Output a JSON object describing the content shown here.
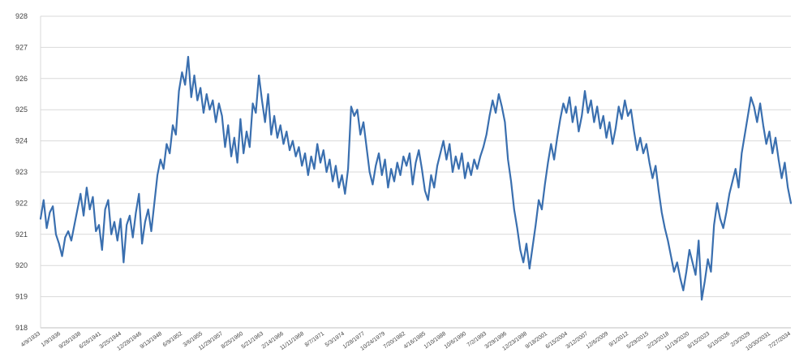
{
  "chart_data": {
    "type": "line",
    "title": "",
    "xlabel": "",
    "ylabel": "",
    "ylim": [
      918,
      928
    ],
    "yticks": [
      "918",
      "919",
      "920",
      "921",
      "922",
      "923",
      "924",
      "925",
      "926",
      "927",
      "928"
    ],
    "xticks": [
      "4/9/1933",
      "1/9/1936",
      "9/26/1938",
      "6/26/1941",
      "3/25/1944",
      "12/28/1946",
      "9/13/1948",
      "6/9/1952",
      "3/6/1955",
      "11/29/1957",
      "8/25/1960",
      "5/21/1963",
      "2/14/1966",
      "11/11/1968",
      "8/7/1971",
      "5/3/1974",
      "1/28/1977",
      "10/24/1979",
      "7/20/1982",
      "4/16/1985",
      "1/10/1988",
      "10/6/1990",
      "7/2/1993",
      "3/29/1996",
      "12/23/1998",
      "9/18/2001",
      "6/15/2004",
      "3/12/2007",
      "12/6/2009",
      "9/1/2012",
      "5/29/2015",
      "2/23/2018",
      "11/19/2020",
      "8/15/2023",
      "5/10/2026",
      "2/3/2029",
      "10/30/2031",
      "7/27/2034"
    ],
    "grid": true,
    "legend": "none",
    "line_color": "#3a6faf",
    "series": [
      {
        "name": "",
        "values": [
          921.5,
          922.1,
          921.2,
          921.7,
          921.9,
          921.0,
          920.7,
          920.3,
          920.9,
          921.1,
          920.8,
          921.3,
          921.8,
          922.3,
          921.6,
          922.5,
          921.8,
          922.2,
          921.1,
          921.3,
          920.5,
          921.8,
          922.1,
          921.0,
          921.4,
          920.8,
          921.5,
          920.1,
          921.3,
          921.6,
          920.9,
          921.7,
          922.3,
          920.7,
          921.4,
          921.8,
          921.1,
          922.0,
          922.9,
          923.4,
          923.1,
          923.9,
          923.6,
          924.5,
          924.2,
          925.6,
          926.2,
          925.8,
          926.7,
          925.4,
          926.1,
          925.3,
          925.7,
          924.9,
          925.5,
          925.0,
          925.3,
          924.6,
          925.2,
          924.8,
          923.8,
          924.5,
          923.5,
          924.1,
          923.3,
          924.7,
          923.6,
          924.3,
          923.8,
          925.2,
          924.9,
          926.1,
          925.3,
          924.6,
          925.5,
          924.2,
          924.8,
          924.1,
          924.5,
          923.9,
          924.3,
          923.7,
          924.0,
          923.5,
          923.8,
          923.2,
          923.6,
          922.9,
          923.5,
          923.1,
          923.9,
          923.3,
          923.7,
          923.0,
          923.4,
          922.7,
          923.2,
          922.5,
          922.9,
          922.3,
          923.1,
          925.1,
          924.8,
          925.0,
          924.2,
          924.6,
          923.8,
          923.0,
          922.6,
          923.2,
          923.6,
          922.9,
          923.4,
          922.5,
          923.1,
          922.7,
          923.3,
          922.9,
          923.5,
          923.2,
          923.6,
          922.6,
          923.3,
          923.7,
          923.1,
          922.4,
          922.1,
          922.9,
          922.5,
          923.2,
          923.6,
          924.0,
          923.4,
          923.9,
          923.0,
          923.5,
          923.1,
          923.6,
          922.8,
          923.3,
          922.9,
          923.4,
          923.1,
          923.5,
          923.8,
          924.2,
          924.8,
          925.3,
          924.9,
          925.5,
          925.1,
          924.6,
          923.4,
          922.7,
          921.8,
          921.2,
          920.5,
          920.1,
          920.7,
          919.9,
          920.6,
          921.3,
          922.1,
          921.8,
          922.6,
          923.3,
          923.9,
          923.4,
          924.1,
          924.7,
          925.2,
          924.9,
          925.4,
          924.6,
          925.1,
          924.3,
          924.8,
          925.6,
          924.9,
          925.3,
          924.6,
          925.1,
          924.4,
          924.8,
          924.1,
          924.6,
          923.9,
          924.4,
          925.1,
          924.7,
          925.3,
          924.8,
          925.0,
          924.3,
          923.7,
          924.1,
          923.6,
          923.9,
          923.3,
          922.8,
          923.2,
          922.4,
          921.7,
          921.2,
          920.8,
          920.3,
          919.8,
          920.1,
          919.6,
          919.2,
          919.8,
          920.5,
          920.1,
          919.7,
          920.8,
          918.9,
          919.5,
          920.2,
          919.8,
          921.3,
          922.0,
          921.5,
          921.2,
          921.7,
          922.3,
          922.7,
          923.1,
          922.5,
          923.6,
          924.2,
          924.8,
          925.4,
          925.1,
          924.6,
          925.2,
          924.5,
          923.9,
          924.3,
          923.6,
          924.1,
          923.4,
          922.8,
          923.3,
          922.5,
          922.0
        ]
      }
    ]
  }
}
